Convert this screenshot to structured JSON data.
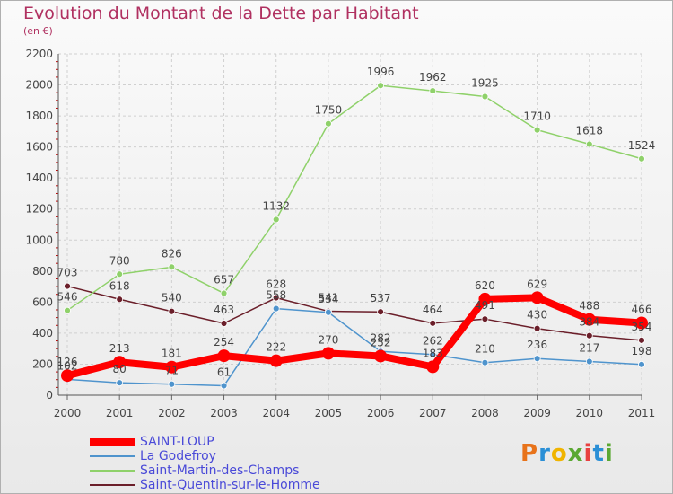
{
  "header": {
    "title": "Evolution du Montant de la Dette par Habitant",
    "subtitle": "(en €)"
  },
  "logo": {
    "text": "Proxiti",
    "colors": [
      "#e8731a",
      "#2a8fd6",
      "#f0b400",
      "#5aa832",
      "#e84040",
      "#2a8fd6",
      "#5aa832"
    ]
  },
  "chart_data": {
    "type": "line",
    "x": [
      "2000",
      "2001",
      "2002",
      "2003",
      "2004",
      "2005",
      "2006",
      "2007",
      "2008",
      "2009",
      "2010",
      "2011"
    ],
    "ylim": [
      0,
      2200
    ],
    "yticks": [
      "0",
      "200",
      "400",
      "600",
      "800",
      "1000",
      "1200",
      "1400",
      "1600",
      "1800",
      "2000",
      "2200"
    ],
    "grid": true,
    "legend": "bottom-left",
    "series": [
      {
        "name": "SAINT-LOUP",
        "color": "#ff0000",
        "values": [
          126,
          213,
          181,
          254,
          222,
          270,
          252,
          183,
          620,
          629,
          488,
          466
        ],
        "labels": [
          "126",
          "213",
          "181",
          "254",
          "222",
          "270",
          "252",
          "183",
          "620",
          "629",
          "488",
          "466"
        ]
      },
      {
        "name": "La Godefroy",
        "color": "#4f94cd",
        "values": [
          102,
          80,
          71,
          61,
          558,
          534,
          282,
          262,
          210,
          236,
          217,
          198
        ],
        "labels": [
          "102",
          "80",
          "71",
          "61",
          "558",
          "534",
          "282",
          "262",
          "210",
          "236",
          "217",
          "198"
        ]
      },
      {
        "name": "Saint-Martin-des-Champs",
        "color": "#8fd16a",
        "values": [
          546,
          780,
          826,
          657,
          1132,
          1750,
          1996,
          1962,
          1925,
          1710,
          1618,
          1524
        ],
        "labels": [
          "546",
          "780",
          "826",
          "657",
          "1132",
          "1750",
          "1996",
          "1962",
          "1925",
          "1710",
          "1618",
          "1524"
        ]
      },
      {
        "name": "Saint-Quentin-sur-le-Homme",
        "color": "#6b1f2a",
        "values": [
          703,
          618,
          540,
          463,
          628,
          541,
          537,
          464,
          491,
          430,
          384,
          354
        ],
        "labels": [
          "703",
          "618",
          "540",
          "463",
          "628",
          "541",
          "537",
          "464",
          "491",
          "430",
          "384",
          "354"
        ]
      }
    ]
  }
}
